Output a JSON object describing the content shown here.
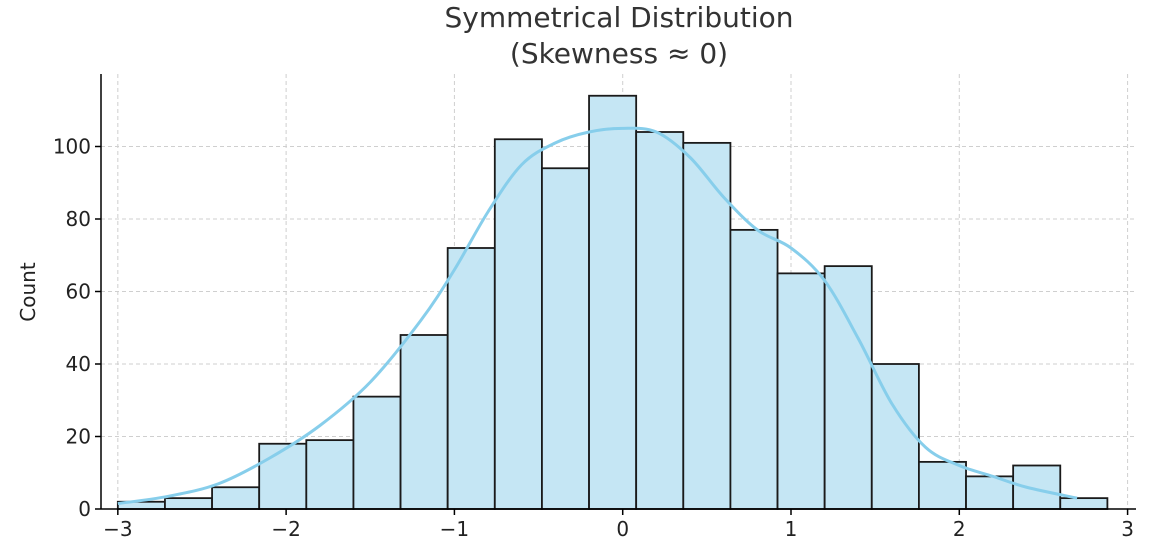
{
  "chart_data": {
    "type": "bar",
    "subtype": "histogram",
    "title_line1": "Symmetrical Distribution",
    "title_line2": "(Skewness ≈ 0)",
    "xlabel": "",
    "ylabel": "Count",
    "xlim": [
      -3.1,
      3.05
    ],
    "ylim": [
      0,
      120
    ],
    "xticks": [
      -3,
      -2,
      -1,
      0,
      1,
      2,
      3
    ],
    "xtick_labels": [
      "−3",
      "−2",
      "−1",
      "0",
      "1",
      "2",
      "3"
    ],
    "yticks": [
      0,
      20,
      40,
      60,
      80,
      100
    ],
    "grid": true,
    "bin_edges": [
      -3.0,
      -2.72,
      -2.44,
      -2.16,
      -1.88,
      -1.6,
      -1.32,
      -1.04,
      -0.76,
      -0.48,
      -0.2,
      0.08,
      0.36,
      0.64,
      0.92,
      1.2,
      1.48,
      1.76,
      2.04,
      2.32,
      2.6,
      2.88
    ],
    "values": [
      2,
      3,
      6,
      18,
      19,
      31,
      48,
      72,
      102,
      94,
      114,
      104,
      101,
      77,
      65,
      67,
      40,
      13,
      9,
      12,
      3
    ],
    "kde": {
      "x": [
        -3.0,
        -2.7,
        -2.4,
        -2.1,
        -1.8,
        -1.5,
        -1.2,
        -1.0,
        -0.8,
        -0.6,
        -0.4,
        -0.2,
        0.0,
        0.2,
        0.4,
        0.6,
        0.8,
        1.0,
        1.2,
        1.4,
        1.6,
        1.8,
        2.0,
        2.2,
        2.4,
        2.7
      ],
      "y": [
        1.5,
        3.5,
        7,
        14,
        23,
        35,
        52,
        66,
        82,
        95,
        101,
        104,
        105,
        104,
        97,
        86,
        77,
        72,
        63,
        47,
        29,
        17,
        12,
        9,
        6,
        3
      ]
    },
    "bar_color": "#c5e6f4",
    "kde_color": "#87ceeb"
  }
}
